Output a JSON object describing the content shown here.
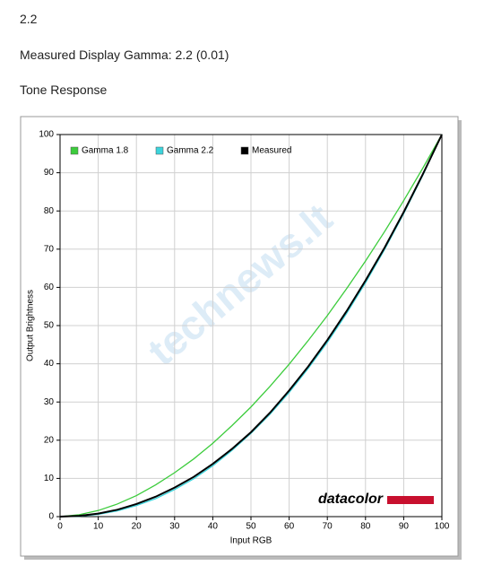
{
  "page": {
    "heading": "2.2",
    "measured": "Measured Display Gamma: 2.2 (0.01)",
    "section": "Tone Response"
  },
  "chart_data": {
    "type": "line",
    "x_label": "Input RGB",
    "y_label": "Output Brightness",
    "logo": "datacolor",
    "watermark": "technews.lt",
    "x": [
      0,
      5,
      10,
      15,
      20,
      25,
      30,
      35,
      40,
      45,
      50,
      55,
      60,
      65,
      70,
      75,
      80,
      85,
      90,
      95,
      100
    ],
    "series": [
      {
        "name": "Gamma 1.8",
        "color": "#3ccc3c",
        "values": [
          0,
          0.5,
          1.6,
          3.3,
          5.5,
          8.3,
          11.5,
          15.1,
          19.2,
          23.8,
          28.7,
          34.1,
          39.9,
          46.1,
          52.6,
          59.6,
          66.9,
          74.6,
          82.7,
          91.2,
          100
        ]
      },
      {
        "name": "Gamma 2.2",
        "color": "#3cd4dc",
        "values": [
          0,
          0.1,
          0.6,
          1.5,
          2.9,
          4.7,
          7.1,
          9.9,
          13.3,
          17.3,
          21.8,
          26.8,
          32.5,
          38.8,
          45.6,
          53.1,
          61.2,
          69.9,
          79.3,
          89.3,
          100
        ]
      },
      {
        "name": "Measured",
        "color": "#000000",
        "values": [
          0,
          0.2,
          0.8,
          1.8,
          3.3,
          5.2,
          7.6,
          10.4,
          13.8,
          17.7,
          22.1,
          27.2,
          33.0,
          39.3,
          46.2,
          53.7,
          61.8,
          70.4,
          79.7,
          89.6,
          100
        ]
      }
    ],
    "xlim": [
      0,
      100
    ],
    "ylim": [
      0,
      100
    ],
    "xticks": [
      0,
      10,
      20,
      30,
      40,
      50,
      60,
      70,
      80,
      90,
      100
    ],
    "yticks": [
      0,
      10,
      20,
      30,
      40,
      50,
      60,
      70,
      80,
      90,
      100
    ],
    "grid": true,
    "legend": "upper left"
  }
}
